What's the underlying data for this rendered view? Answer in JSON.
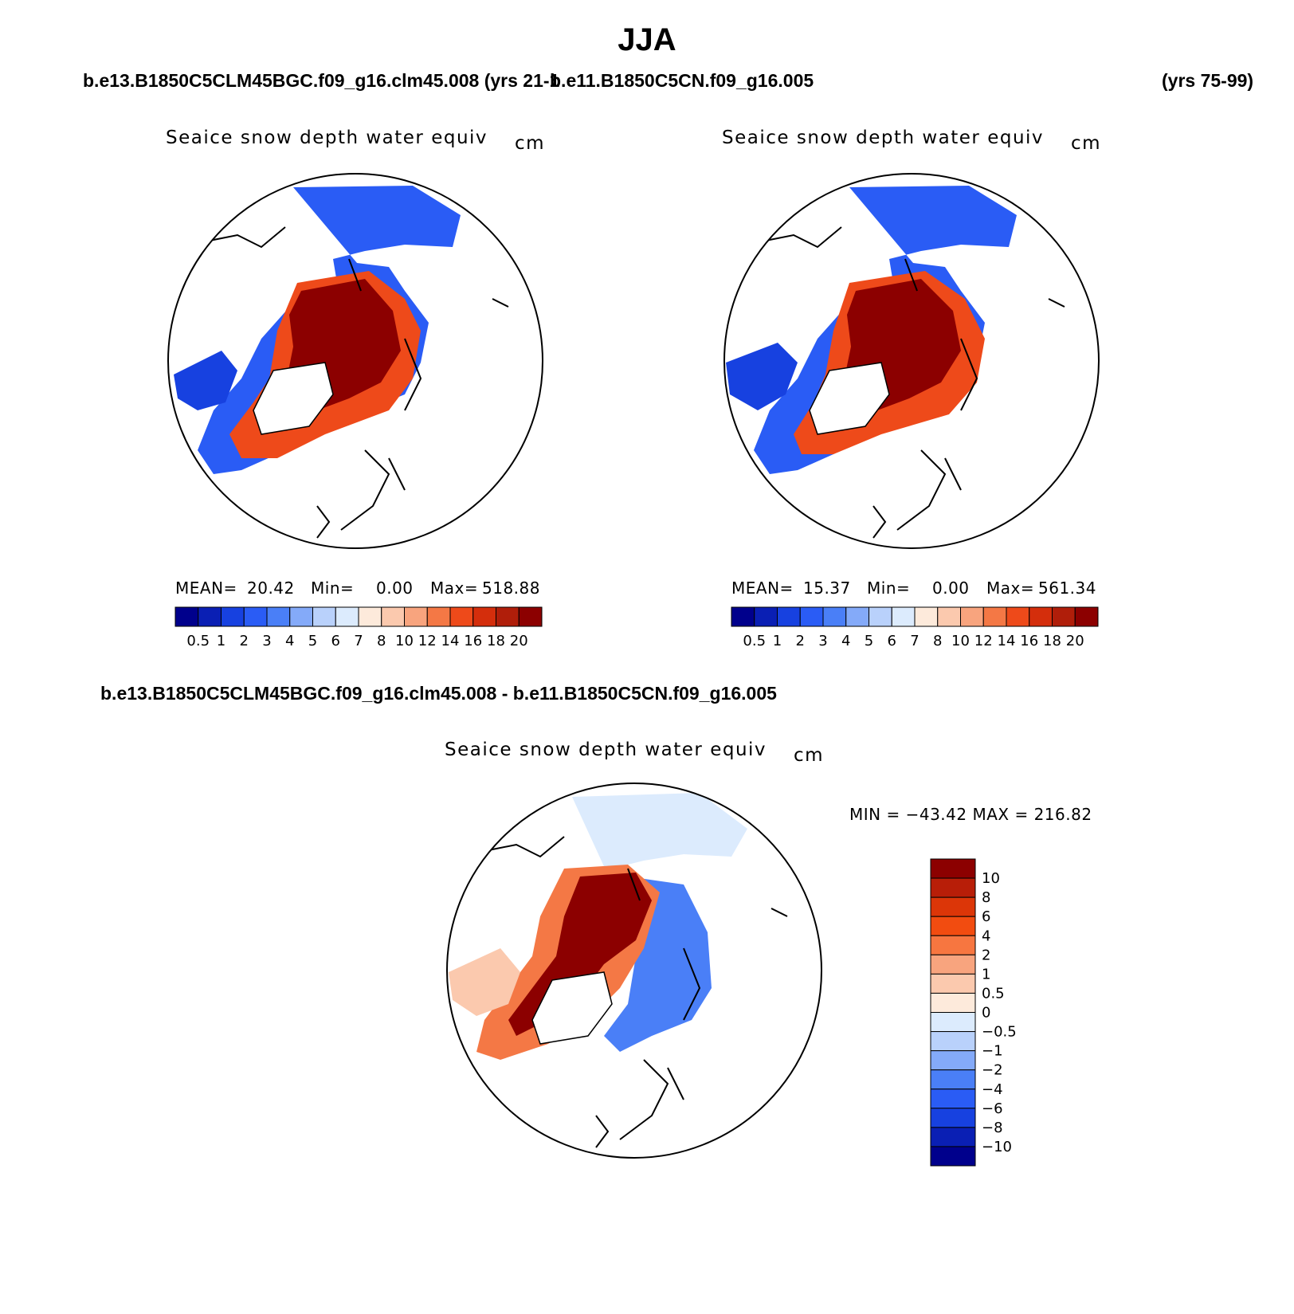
{
  "season": "JJA",
  "header": {
    "case_top_left": "b.e13.B1850C5CLM45BGC.f09_g16.clm45.008 (yrs 21-1",
    "case_top_mid": "b.e11.B1850C5CN.f09_g16.005",
    "case_top_right": "(yrs 75-99)",
    "diff_case": "b.e13.B1850C5CLM45BGC.f09_g16.clm45.008 - b.e11.B1850C5CN.f09_g16.005"
  },
  "variable": {
    "name": "Seaice snow depth water equiv",
    "units": "cm"
  },
  "panels": [
    {
      "id": "model1",
      "mean_label": "MEAN=",
      "mean": "20.42",
      "min_label": "Min=",
      "min": "0.00",
      "max_label": "Max=",
      "max": "518.88"
    },
    {
      "id": "model2",
      "mean_label": "MEAN=",
      "mean": "15.37",
      "min_label": "Min=",
      "min": "0.00",
      "max_label": "Max=",
      "max": "561.34"
    }
  ],
  "diff_stats": "MIN = −43.42 MAX = 216.82",
  "colorbar_levels": [
    "0.5",
    "1",
    "2",
    "3",
    "4",
    "5",
    "6",
    "7",
    "8",
    "10",
    "12",
    "14",
    "16",
    "18",
    "20"
  ],
  "colorbar_colors": [
    "#00008c",
    "#0a1fb4",
    "#1741e0",
    "#2a5cf5",
    "#4a7ff7",
    "#84aaf9",
    "#b9d1fb",
    "#dcebfd",
    "#fdeadb",
    "#fbc9ae",
    "#f8a47e",
    "#f47845",
    "#ee4a1a",
    "#d42e0c",
    "#b01e0a",
    "#8c0000"
  ],
  "diff_levels": [
    "10",
    "8",
    "6",
    "4",
    "2",
    "1",
    "0.5",
    "0",
    "−0.5",
    "−1",
    "−2",
    "−4",
    "−6",
    "−8",
    "−10"
  ],
  "diff_colors": [
    "#8c0000",
    "#b81e08",
    "#dc3608",
    "#f24c10",
    "#f77640",
    "#f8a47e",
    "#fbc9ae",
    "#fdeadb",
    "#dcebfd",
    "#b9d1fb",
    "#84aaf9",
    "#4a7ff7",
    "#2a5cf5",
    "#1741e0",
    "#0a1fb4",
    "#00008c"
  ]
}
